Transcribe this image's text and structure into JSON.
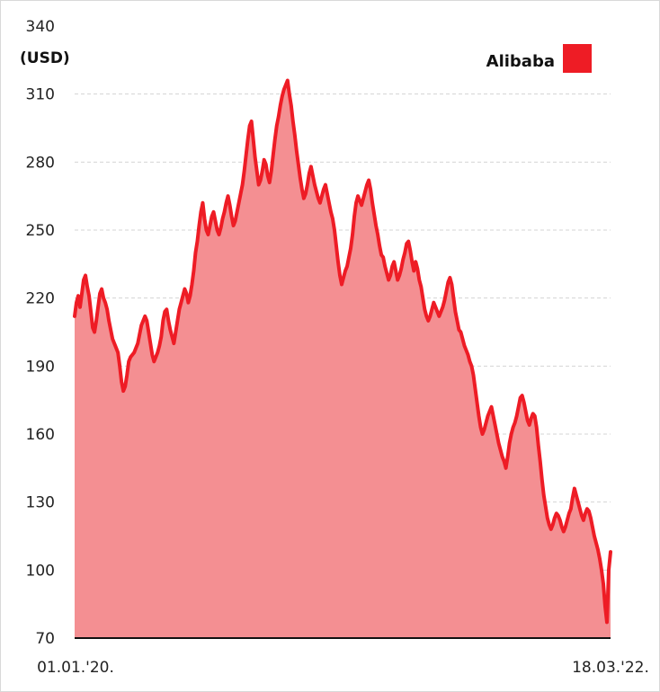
{
  "chart_data": {
    "type": "area",
    "unit_label": "(USD)",
    "ylim": [
      70,
      340
    ],
    "y_ticks": [
      70,
      100,
      130,
      160,
      190,
      220,
      250,
      280,
      310,
      340
    ],
    "x_tick_labels": [
      "01.01.'20.",
      "18.03.'22."
    ],
    "grid": true,
    "legend_position": "top-right",
    "series": [
      {
        "name": "Alibaba",
        "color": "#ee1c25",
        "fill_color": "#f48f92",
        "values": [
          212,
          218,
          221,
          216,
          222,
          228,
          230,
          225,
          221,
          214,
          207,
          205,
          210,
          216,
          222,
          224,
          220,
          218,
          215,
          210,
          206,
          202,
          200,
          198,
          196,
          190,
          183,
          179,
          181,
          186,
          192,
          194,
          195,
          196,
          198,
          200,
          204,
          208,
          210,
          212,
          210,
          205,
          200,
          195,
          192,
          194,
          196,
          199,
          203,
          210,
          214,
          215,
          210,
          206,
          203,
          200,
          205,
          210,
          215,
          218,
          221,
          224,
          222,
          218,
          221,
          226,
          232,
          240,
          245,
          252,
          258,
          262,
          255,
          250,
          248,
          252,
          256,
          258,
          254,
          250,
          248,
          251,
          255,
          258,
          262,
          265,
          261,
          256,
          252,
          254,
          258,
          262,
          266,
          270,
          276,
          283,
          290,
          296,
          298,
          290,
          282,
          276,
          270,
          272,
          276,
          281,
          279,
          274,
          271,
          276,
          283,
          290,
          296,
          300,
          305,
          309,
          312,
          314,
          316,
          310,
          305,
          298,
          292,
          285,
          279,
          273,
          268,
          264,
          266,
          270,
          275,
          278,
          274,
          270,
          267,
          264,
          262,
          265,
          268,
          270,
          266,
          262,
          258,
          255,
          250,
          243,
          236,
          230,
          226,
          229,
          232,
          234,
          238,
          242,
          248,
          256,
          262,
          265,
          263,
          261,
          264,
          267,
          270,
          272,
          268,
          262,
          257,
          252,
          248,
          243,
          239,
          238,
          234,
          231,
          228,
          230,
          234,
          236,
          232,
          228,
          230,
          233,
          237,
          240,
          244,
          245,
          241,
          236,
          232,
          236,
          233,
          228,
          225,
          220,
          215,
          212,
          210,
          212,
          215,
          218,
          216,
          214,
          212,
          214,
          216,
          219,
          223,
          227,
          229,
          226,
          220,
          214,
          210,
          206,
          205,
          202,
          199,
          197,
          195,
          192,
          190,
          186,
          180,
          174,
          168,
          163,
          160,
          162,
          165,
          168,
          170,
          172,
          168,
          164,
          160,
          156,
          153,
          150,
          148,
          145,
          150,
          156,
          160,
          163,
          165,
          168,
          172,
          176,
          177,
          174,
          170,
          166,
          164,
          167,
          169,
          168,
          163,
          155,
          148,
          140,
          133,
          128,
          123,
          120,
          118,
          120,
          123,
          125,
          124,
          122,
          119,
          117,
          119,
          122,
          125,
          127,
          132,
          136,
          133,
          130,
          127,
          124,
          122,
          125,
          127,
          126,
          123,
          119,
          115,
          112,
          109,
          105,
          100,
          94,
          84,
          77,
          100,
          108
        ]
      }
    ]
  }
}
